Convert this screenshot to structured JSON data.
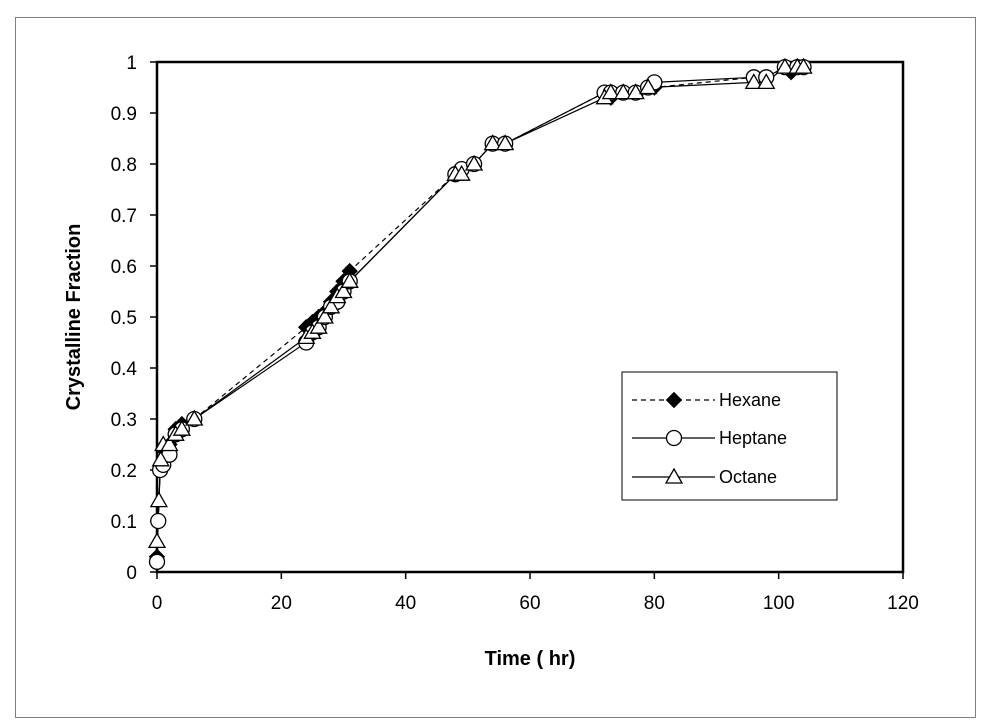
{
  "chart_data": {
    "type": "scatter",
    "title": "",
    "xlabel": "Time ( hr)",
    "ylabel": "Crystalline Fraction",
    "xlim": [
      0,
      120
    ],
    "ylim": [
      0,
      1
    ],
    "xticks": [
      0,
      20,
      40,
      60,
      80,
      100,
      120
    ],
    "yticks": [
      0,
      0.1,
      0.2,
      0.3,
      0.4,
      0.5,
      0.6,
      0.7,
      0.8,
      0.9,
      1
    ],
    "ytick_labels": [
      "0",
      "0.1",
      "0.2",
      "0.3",
      "0.4",
      "0.5",
      "0.6",
      "0.7",
      "0.8",
      "0.9",
      "1"
    ],
    "grid": false,
    "legend_position": "lower-right",
    "series": [
      {
        "name": "Hexane",
        "marker": "diamond",
        "line": "dashed",
        "color": "#000000",
        "x": [
          0,
          0.5,
          1,
          2,
          3,
          4,
          6,
          24,
          25,
          26,
          27,
          28,
          29,
          30,
          31,
          48,
          49,
          51,
          54,
          56,
          72,
          73,
          75,
          77,
          79,
          80,
          96,
          98,
          101,
          102,
          104
        ],
        "y": [
          0.03,
          0.2,
          0.24,
          0.25,
          0.28,
          0.29,
          0.3,
          0.48,
          0.49,
          0.5,
          0.51,
          0.53,
          0.55,
          0.57,
          0.59,
          0.78,
          0.79,
          0.8,
          0.84,
          0.84,
          0.94,
          0.93,
          0.94,
          0.94,
          0.95,
          0.95,
          0.97,
          0.97,
          0.99,
          0.98,
          0.99
        ]
      },
      {
        "name": "Heptane",
        "marker": "circle",
        "line": "solid",
        "color": "#000000",
        "x": [
          0,
          0.2,
          0.5,
          1,
          2,
          3,
          4,
          6,
          24,
          25,
          26,
          27,
          28,
          29,
          30,
          31,
          48,
          49,
          51,
          54,
          56,
          72,
          73,
          75,
          77,
          79,
          80,
          96,
          98,
          101,
          103,
          104
        ],
        "y": [
          0.02,
          0.1,
          0.2,
          0.21,
          0.23,
          0.27,
          0.28,
          0.3,
          0.45,
          0.47,
          0.48,
          0.5,
          0.52,
          0.53,
          0.55,
          0.57,
          0.78,
          0.79,
          0.8,
          0.84,
          0.84,
          0.94,
          0.94,
          0.94,
          0.94,
          0.95,
          0.96,
          0.97,
          0.97,
          0.99,
          0.99,
          0.99
        ]
      },
      {
        "name": "Octane",
        "marker": "triangle",
        "line": "solid",
        "color": "#000000",
        "x": [
          0,
          0.3,
          0.6,
          1,
          2,
          3,
          4,
          6,
          24,
          25,
          26,
          27,
          28,
          29,
          30,
          31,
          48,
          49,
          51,
          54,
          56,
          72,
          73,
          75,
          77,
          79,
          96,
          98,
          101,
          103,
          104
        ],
        "y": [
          0.06,
          0.14,
          0.22,
          0.25,
          0.25,
          0.27,
          0.28,
          0.3,
          0.46,
          0.47,
          0.48,
          0.5,
          0.52,
          0.54,
          0.55,
          0.57,
          0.78,
          0.78,
          0.8,
          0.84,
          0.84,
          0.93,
          0.94,
          0.94,
          0.94,
          0.95,
          0.96,
          0.96,
          0.99,
          0.99,
          0.99
        ]
      }
    ]
  }
}
